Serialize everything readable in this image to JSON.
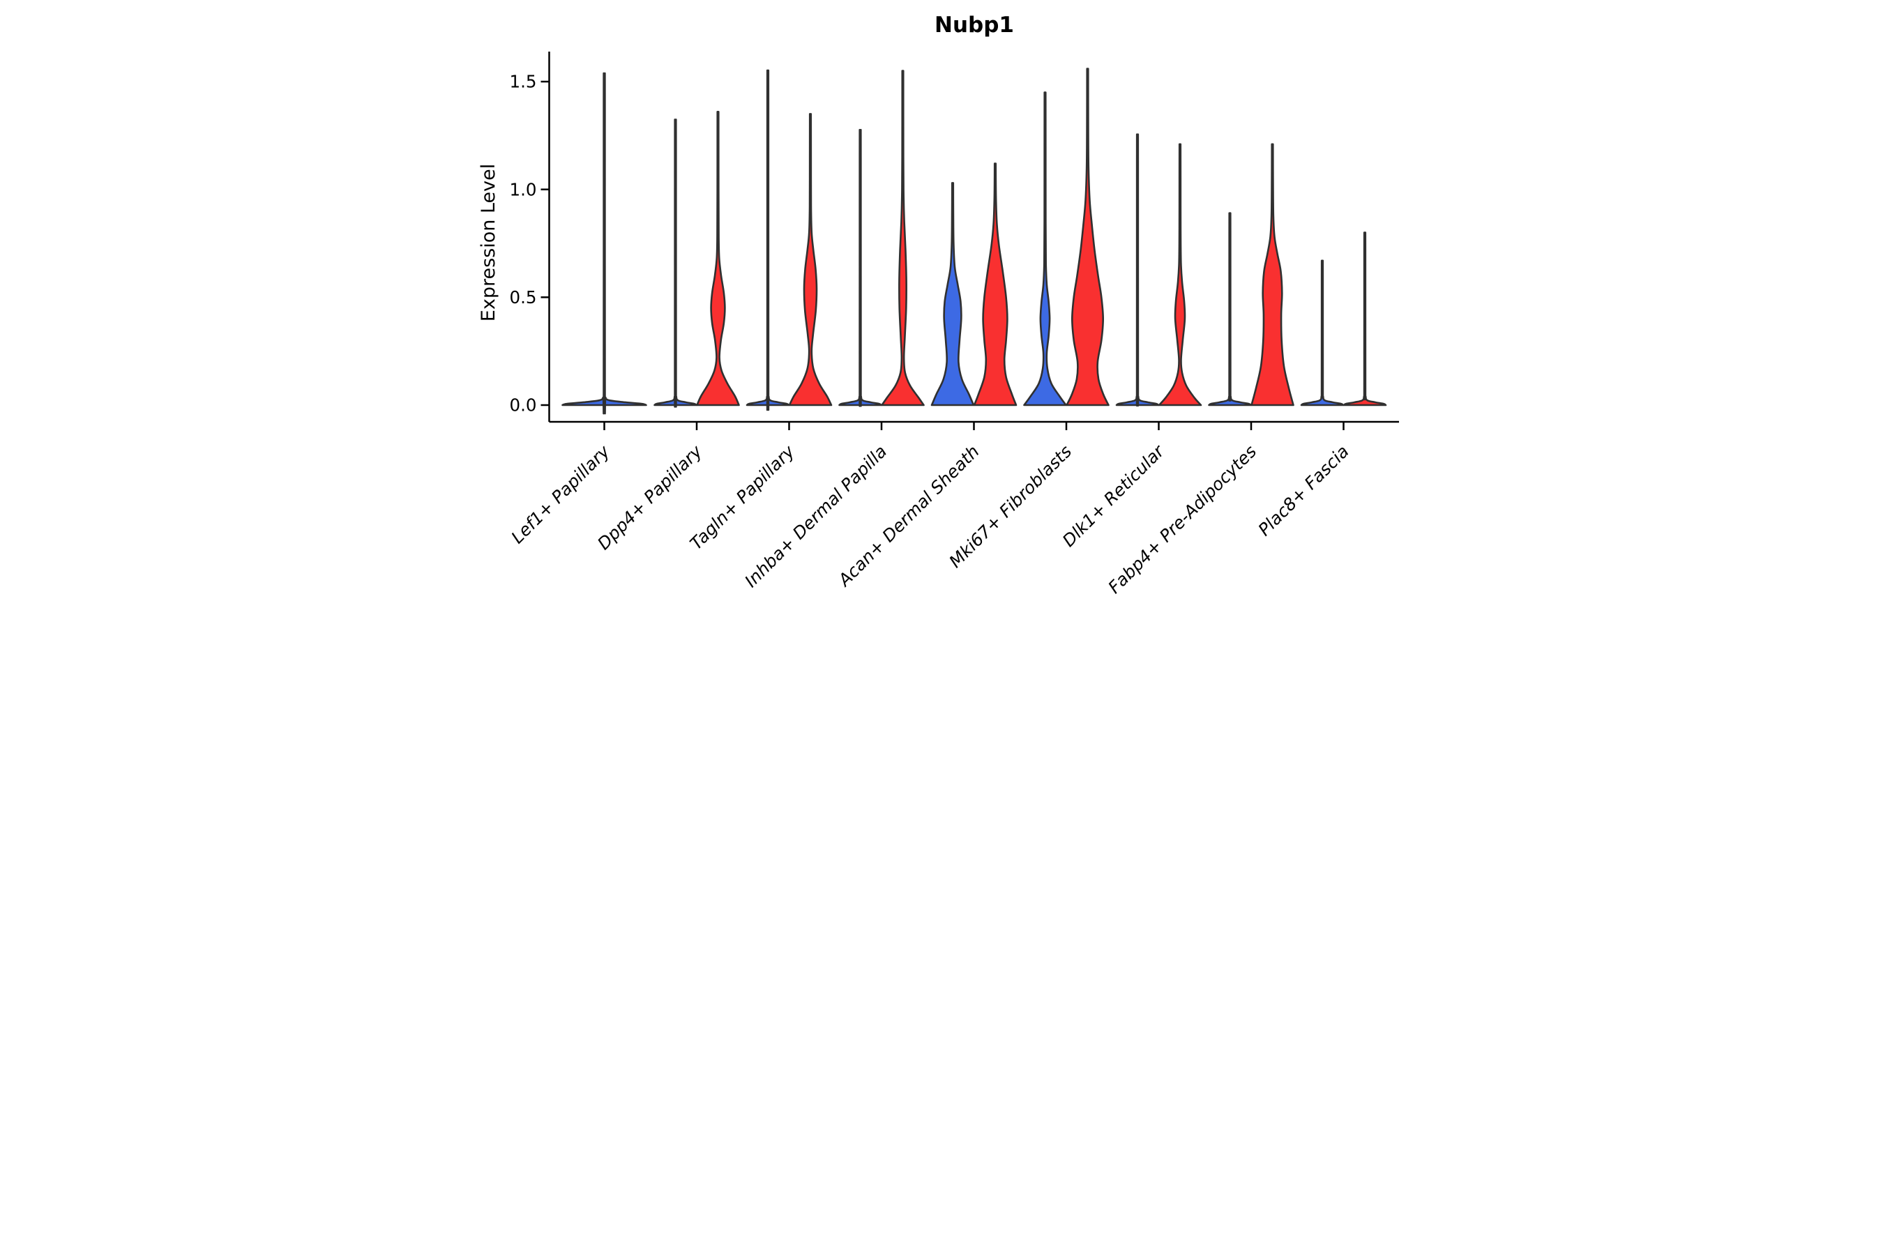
{
  "title": "Nubp1",
  "axes": {
    "ylabel": "Expression Level",
    "yticks": [
      {
        "label": "0.0",
        "value": 0.0
      },
      {
        "label": "0.5",
        "value": 0.5
      },
      {
        "label": "1.0",
        "value": 1.0
      },
      {
        "label": "1.5",
        "value": 1.5
      }
    ]
  },
  "colors": {
    "group_left_blue": "#3D6AE4",
    "group_right_red": "#F93030",
    "violin_outline": "#303030",
    "axis": "#000000"
  },
  "chart_data": {
    "type": "violin",
    "title": "Nubp1",
    "xlabel": "",
    "ylabel": "Expression Level",
    "ylim": [
      0,
      1.65
    ],
    "yticks": [
      0.0,
      0.5,
      1.0,
      1.5
    ],
    "grid": false,
    "legend": "none",
    "x_tick_rotation": 45,
    "categories": [
      "Lef1+ Papillary",
      "Dpp4+ Papillary",
      "Tagln+ Papillary",
      "Inhba+ Dermal Papilla",
      "Acan+ Dermal Sheath",
      "Mki67+ Fibroblasts",
      "Dlk1+ Reticular",
      "Fabp4+ Pre-Adipocytes",
      "Plac8+ Fascia"
    ],
    "series": [
      {
        "category": "Lef1+ Papillary",
        "violins": [
          {
            "group": "single",
            "color": "#3D6AE4",
            "max_expression": 1.51,
            "center_offset": 0,
            "width_scale": 2,
            "profile": [
              [
                0,
                1
              ],
              [
                0.006,
                0.9
              ],
              [
                0.013,
                0.5
              ],
              [
                0.022,
                0.12
              ],
              [
                0.035,
                0.03
              ],
              [
                0.07,
                0.016
              ],
              [
                1.4,
                0.015
              ],
              [
                1.51,
                0.014
              ]
            ]
          }
        ]
      },
      {
        "category": "Dpp4+ Papillary",
        "violins": [
          {
            "group": "left",
            "color": "#3D6AE4",
            "max_expression": 1.31,
            "center_offset": -30.5,
            "width_scale": 1,
            "profile": [
              [
                0,
                1
              ],
              [
                0.006,
                0.9
              ],
              [
                0.013,
                0.5
              ],
              [
                0.022,
                0.12
              ],
              [
                0.04,
                0.04
              ],
              [
                0.09,
                0.03
              ],
              [
                1.2,
                0.028
              ],
              [
                1.31,
                0.026
              ]
            ]
          },
          {
            "group": "right",
            "color": "#F93030",
            "max_expression": 1.36,
            "center_offset": 30.5,
            "width_scale": 1,
            "profile": [
              [
                0,
                1
              ],
              [
                0.04,
                0.82
              ],
              [
                0.1,
                0.45
              ],
              [
                0.16,
                0.17
              ],
              [
                0.22,
                0.07
              ],
              [
                0.3,
                0.14
              ],
              [
                0.38,
                0.28
              ],
              [
                0.45,
                0.33
              ],
              [
                0.52,
                0.28
              ],
              [
                0.6,
                0.15
              ],
              [
                0.68,
                0.06
              ],
              [
                0.78,
                0.035
              ],
              [
                1.0,
                0.028
              ],
              [
                1.36,
                0.026
              ]
            ]
          }
        ]
      },
      {
        "category": "Tagln+ Papillary",
        "violins": [
          {
            "group": "left",
            "color": "#3D6AE4",
            "max_expression": 1.54,
            "center_offset": -30.5,
            "width_scale": 1,
            "profile": [
              [
                0,
                1
              ],
              [
                0.006,
                0.9
              ],
              [
                0.013,
                0.5
              ],
              [
                0.022,
                0.12
              ],
              [
                0.04,
                0.04
              ],
              [
                0.09,
                0.03
              ],
              [
                1.4,
                0.028
              ],
              [
                1.54,
                0.026
              ]
            ]
          },
          {
            "group": "right",
            "color": "#F93030",
            "max_expression": 1.35,
            "center_offset": 30.5,
            "width_scale": 1,
            "profile": [
              [
                0,
                1
              ],
              [
                0.04,
                0.8
              ],
              [
                0.1,
                0.42
              ],
              [
                0.17,
                0.14
              ],
              [
                0.25,
                0.06
              ],
              [
                0.33,
                0.13
              ],
              [
                0.44,
                0.26
              ],
              [
                0.54,
                0.3
              ],
              [
                0.63,
                0.25
              ],
              [
                0.72,
                0.14
              ],
              [
                0.8,
                0.06
              ],
              [
                0.92,
                0.032
              ],
              [
                1.15,
                0.028
              ],
              [
                1.35,
                0.026
              ]
            ]
          }
        ]
      },
      {
        "category": "Inhba+ Dermal Papilla",
        "violins": [
          {
            "group": "left",
            "color": "#3D6AE4",
            "max_expression": 1.27,
            "center_offset": -30.5,
            "width_scale": 1,
            "profile": [
              [
                0,
                1
              ],
              [
                0.006,
                0.9
              ],
              [
                0.013,
                0.5
              ],
              [
                0.022,
                0.12
              ],
              [
                0.04,
                0.04
              ],
              [
                0.09,
                0.03
              ],
              [
                1.15,
                0.028
              ],
              [
                1.27,
                0.026
              ]
            ]
          },
          {
            "group": "right",
            "color": "#F93030",
            "max_expression": 1.55,
            "center_offset": 30.5,
            "width_scale": 1,
            "profile": [
              [
                0,
                1
              ],
              [
                0.035,
                0.75
              ],
              [
                0.09,
                0.35
              ],
              [
                0.15,
                0.11
              ],
              [
                0.22,
                0.055
              ],
              [
                0.32,
                0.1
              ],
              [
                0.45,
                0.16
              ],
              [
                0.58,
                0.17
              ],
              [
                0.72,
                0.13
              ],
              [
                0.85,
                0.07
              ],
              [
                0.97,
                0.04
              ],
              [
                1.15,
                0.028
              ],
              [
                1.55,
                0.025
              ]
            ]
          }
        ]
      },
      {
        "category": "Acan+ Dermal Sheath",
        "violins": [
          {
            "group": "left",
            "color": "#3D6AE4",
            "max_expression": 1.03,
            "center_offset": -30.5,
            "width_scale": 1,
            "profile": [
              [
                0,
                1
              ],
              [
                0.05,
                0.78
              ],
              [
                0.12,
                0.44
              ],
              [
                0.2,
                0.28
              ],
              [
                0.3,
                0.33
              ],
              [
                0.4,
                0.41
              ],
              [
                0.48,
                0.38
              ],
              [
                0.56,
                0.24
              ],
              [
                0.64,
                0.1
              ],
              [
                0.75,
                0.045
              ],
              [
                0.9,
                0.03
              ],
              [
                1.03,
                0.026
              ]
            ]
          },
          {
            "group": "right",
            "color": "#F93030",
            "max_expression": 1.12,
            "center_offset": 30.5,
            "width_scale": 1,
            "profile": [
              [
                0,
                1
              ],
              [
                0.05,
                0.8
              ],
              [
                0.13,
                0.52
              ],
              [
                0.21,
                0.44
              ],
              [
                0.3,
                0.52
              ],
              [
                0.4,
                0.58
              ],
              [
                0.5,
                0.52
              ],
              [
                0.62,
                0.36
              ],
              [
                0.74,
                0.18
              ],
              [
                0.84,
                0.08
              ],
              [
                0.95,
                0.04
              ],
              [
                1.06,
                0.028
              ],
              [
                1.12,
                0.026
              ]
            ]
          }
        ]
      },
      {
        "category": "Mki67+ Fibroblasts",
        "violins": [
          {
            "group": "left",
            "color": "#3D6AE4",
            "max_expression": 1.45,
            "center_offset": -30.5,
            "width_scale": 1,
            "profile": [
              [
                0,
                1
              ],
              [
                0.04,
                0.7
              ],
              [
                0.1,
                0.3
              ],
              [
                0.17,
                0.11
              ],
              [
                0.24,
                0.08
              ],
              [
                0.32,
                0.17
              ],
              [
                0.4,
                0.22
              ],
              [
                0.48,
                0.17
              ],
              [
                0.56,
                0.08
              ],
              [
                0.66,
                0.04
              ],
              [
                0.85,
                0.03
              ],
              [
                1.2,
                0.028
              ],
              [
                1.45,
                0.026
              ]
            ]
          },
          {
            "group": "right",
            "color": "#F93030",
            "max_expression": 1.56,
            "center_offset": 30.5,
            "width_scale": 1,
            "profile": [
              [
                0,
                1
              ],
              [
                0.05,
                0.75
              ],
              [
                0.12,
                0.52
              ],
              [
                0.2,
                0.48
              ],
              [
                0.3,
                0.66
              ],
              [
                0.4,
                0.74
              ],
              [
                0.5,
                0.66
              ],
              [
                0.6,
                0.5
              ],
              [
                0.72,
                0.33
              ],
              [
                0.84,
                0.2
              ],
              [
                0.95,
                0.1
              ],
              [
                1.1,
                0.045
              ],
              [
                1.3,
                0.03
              ],
              [
                1.56,
                0.026
              ]
            ]
          }
        ]
      },
      {
        "category": "Dlk1+ Reticular",
        "violins": [
          {
            "group": "left",
            "color": "#3D6AE4",
            "max_expression": 1.25,
            "center_offset": -30.5,
            "width_scale": 1,
            "profile": [
              [
                0,
                1
              ],
              [
                0.006,
                0.9
              ],
              [
                0.013,
                0.5
              ],
              [
                0.022,
                0.12
              ],
              [
                0.04,
                0.04
              ],
              [
                0.09,
                0.03
              ],
              [
                1.13,
                0.028
              ],
              [
                1.25,
                0.026
              ]
            ]
          },
          {
            "group": "right",
            "color": "#F93030",
            "max_expression": 1.21,
            "center_offset": 30.5,
            "width_scale": 1,
            "profile": [
              [
                0,
                1
              ],
              [
                0.035,
                0.68
              ],
              [
                0.09,
                0.3
              ],
              [
                0.15,
                0.1
              ],
              [
                0.21,
                0.05
              ],
              [
                0.3,
                0.13
              ],
              [
                0.4,
                0.23
              ],
              [
                0.48,
                0.2
              ],
              [
                0.57,
                0.1
              ],
              [
                0.66,
                0.045
              ],
              [
                0.82,
                0.03
              ],
              [
                1.05,
                0.028
              ],
              [
                1.21,
                0.026
              ]
            ]
          }
        ]
      },
      {
        "category": "Fabp4+ Pre-Adipocytes",
        "violins": [
          {
            "group": "left",
            "color": "#3D6AE4",
            "max_expression": 0.89,
            "center_offset": -30.5,
            "width_scale": 1,
            "profile": [
              [
                0,
                1
              ],
              [
                0.006,
                0.9
              ],
              [
                0.013,
                0.5
              ],
              [
                0.022,
                0.12
              ],
              [
                0.04,
                0.04
              ],
              [
                0.09,
                0.03
              ],
              [
                0.8,
                0.028
              ],
              [
                0.89,
                0.026
              ]
            ]
          },
          {
            "group": "right",
            "color": "#F93030",
            "max_expression": 1.21,
            "center_offset": 30.5,
            "width_scale": 1,
            "profile": [
              [
                0,
                1
              ],
              [
                0.08,
                0.78
              ],
              [
                0.18,
                0.55
              ],
              [
                0.3,
                0.44
              ],
              [
                0.42,
                0.42
              ],
              [
                0.52,
                0.46
              ],
              [
                0.62,
                0.4
              ],
              [
                0.7,
                0.24
              ],
              [
                0.78,
                0.1
              ],
              [
                0.88,
                0.045
              ],
              [
                1.05,
                0.03
              ],
              [
                1.21,
                0.026
              ]
            ]
          }
        ]
      },
      {
        "category": "Plac8+ Fascia",
        "violins": [
          {
            "group": "left",
            "color": "#3D6AE4",
            "max_expression": 0.67,
            "center_offset": -30.5,
            "width_scale": 1,
            "profile": [
              [
                0,
                1
              ],
              [
                0.006,
                0.9
              ],
              [
                0.013,
                0.5
              ],
              [
                0.022,
                0.12
              ],
              [
                0.04,
                0.04
              ],
              [
                0.09,
                0.03
              ],
              [
                0.6,
                0.028
              ],
              [
                0.67,
                0.026
              ]
            ]
          },
          {
            "group": "right",
            "color": "#F93030",
            "max_expression": 0.8,
            "center_offset": 30.5,
            "width_scale": 1,
            "profile": [
              [
                0,
                1
              ],
              [
                0.006,
                0.9
              ],
              [
                0.013,
                0.5
              ],
              [
                0.022,
                0.12
              ],
              [
                0.04,
                0.04
              ],
              [
                0.09,
                0.03
              ],
              [
                0.72,
                0.028
              ],
              [
                0.8,
                0.026
              ]
            ]
          }
        ]
      }
    ]
  }
}
